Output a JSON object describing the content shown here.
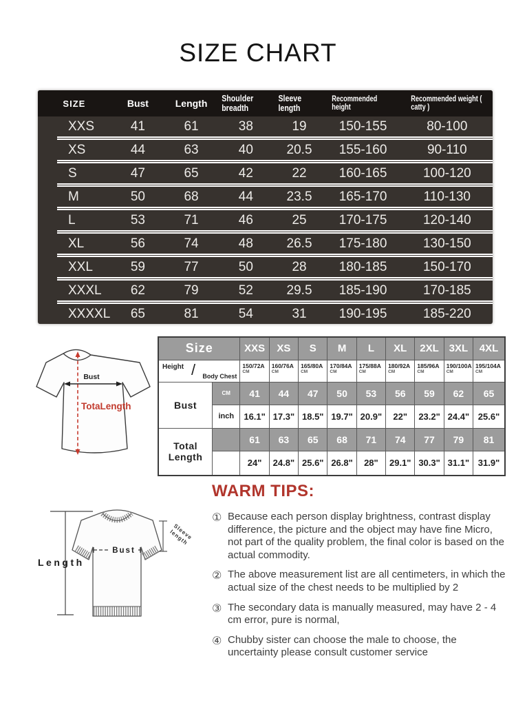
{
  "title": "SIZE CHART",
  "colors": {
    "accent_red": "#b1352c",
    "diagram_red": "#c23b2e",
    "table_header_bg": "#191513",
    "table_body_bg": "#37322e",
    "gray_cell_bg": "#9c9c9c"
  },
  "size_table": {
    "headers": [
      "SIZE",
      "Bust",
      "Length",
      "Shoulder breadth",
      "Sleeve length",
      "Recommended height",
      "Recommended weight ( catty )"
    ],
    "rows": [
      [
        "XXS",
        "41",
        "61",
        "38",
        "19",
        "150-155",
        "80-100"
      ],
      [
        "XS",
        "44",
        "63",
        "40",
        "20.5",
        "155-160",
        "90-110"
      ],
      [
        "S",
        "47",
        "65",
        "42",
        "22",
        "160-165",
        "100-120"
      ],
      [
        "M",
        "50",
        "68",
        "44",
        "23.5",
        "165-170",
        "110-130"
      ],
      [
        "L",
        "53",
        "71",
        "46",
        "25",
        "170-175",
        "120-140"
      ],
      [
        "XL",
        "56",
        "74",
        "48",
        "26.5",
        "175-180",
        "130-150"
      ],
      [
        "XXL",
        "59",
        "77",
        "50",
        "28",
        "180-185",
        "150-170"
      ],
      [
        "XXXL",
        "62",
        "79",
        "52",
        "29.5",
        "185-190",
        "170-185"
      ],
      [
        "XXXXL",
        "65",
        "81",
        "54",
        "31",
        "190-195",
        "185-220"
      ]
    ]
  },
  "detail_table": {
    "size_label": "Size",
    "sizes": [
      "XXS",
      "XS",
      "S",
      "M",
      "L",
      "XL",
      "2XL",
      "3XL",
      "4XL"
    ],
    "height_label": "Height",
    "body_chest_label": "Body Chest",
    "unit_cm": "CM",
    "unit_inch": "inch",
    "height_chest": [
      "150/72A",
      "160/76A",
      "165/80A",
      "170/84A",
      "175/88A",
      "180/92A",
      "185/96A",
      "190/100A",
      "195/104A"
    ],
    "bust_label": "Bust",
    "bust_cm": [
      "41",
      "44",
      "47",
      "50",
      "53",
      "56",
      "59",
      "62",
      "65"
    ],
    "bust_inch": [
      "16.1\"",
      "17.3\"",
      "18.5\"",
      "19.7\"",
      "20.9\"",
      "22\"",
      "23.2\"",
      "24.4\"",
      "25.6\""
    ],
    "total_length_label": "Total Length",
    "length_cm": [
      "61",
      "63",
      "65",
      "68",
      "71",
      "74",
      "77",
      "79",
      "81"
    ],
    "length_inch": [
      "24\"",
      "24.8\"",
      "25.6\"",
      "26.8\"",
      "28\"",
      "29.1\"",
      "30.3\"",
      "31.1\"",
      "31.9\""
    ]
  },
  "diagram1": {
    "bust_label": "Bust",
    "total_length_label": "TotaLength"
  },
  "diagram2": {
    "length_label": "Length",
    "bust_label": "Bust",
    "sleeve_label_line1": "Sleeve",
    "sleeve_label_line2": "length"
  },
  "warm_tips": {
    "heading": "WARM TIPS:",
    "tips": [
      {
        "num": "①",
        "text": "Because each person display brightness, contrast display difference, the picture and the object may have fine Micro, not part of the quality problem, the final color is based on the actual commodity."
      },
      {
        "num": "②",
        "text": "The above measurement list are all centimeters, in which the actual size of the chest needs to be multiplied by 2"
      },
      {
        "num": "③",
        "text": "The secondary data is manually measured, may have 2 - 4 cm error, pure is normal,"
      },
      {
        "num": "④",
        "text": "Chubby sister can choose the male to choose, the uncertainty please consult customer service"
      }
    ]
  }
}
